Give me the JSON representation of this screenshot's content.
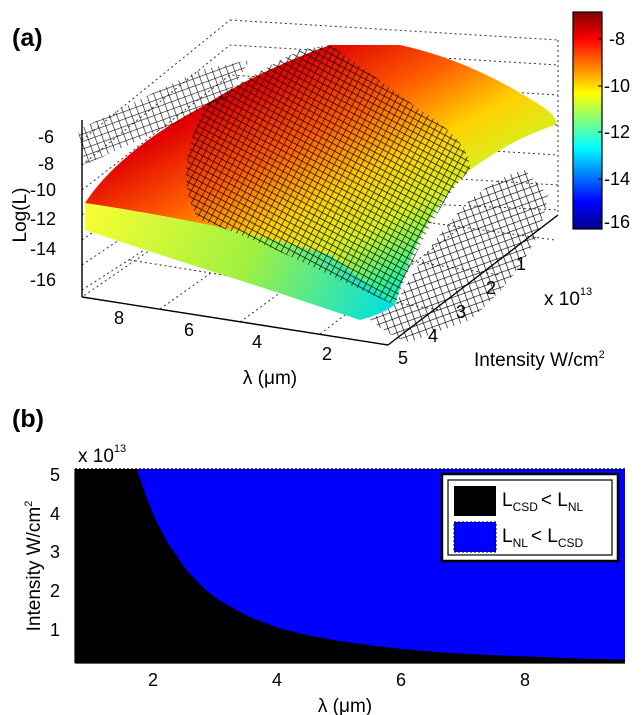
{
  "chart_data": [
    {
      "type": "surface",
      "panel_label": "(a)",
      "zlabel": "Log(L)",
      "xlabel": "λ (μm)",
      "ylabel": "Intensity W/cm",
      "ylabel_sup": "2",
      "y_exponent": "x 10",
      "y_exponent_power": "13",
      "x_ticks": [
        "8",
        "6",
        "4",
        "2"
      ],
      "y_ticks": [
        "1",
        "2",
        "3",
        "4",
        "5"
      ],
      "z_ticks": [
        "-6",
        "-8",
        "-10",
        "-12",
        "-14",
        "-16"
      ],
      "xlim": [
        0.7,
        9.5
      ],
      "ylim": [
        0,
        5
      ],
      "zlim": [
        -16.5,
        -6
      ],
      "colorbar": {
        "colormap": "jet",
        "range": [
          -16.5,
          -7.2
        ],
        "ticks": [
          "-8",
          "-10",
          "-12",
          "-14",
          "-16"
        ]
      },
      "surfaces": [
        {
          "style": "colored",
          "z_corners": {
            "x_max_y_min": -10.5,
            "x_max_y_max": -7.5,
            "x_min_y_min": -12.8,
            "x_min_y_max": -7.5
          }
        },
        {
          "style": "black-mesh",
          "z_corners": {
            "x_max_y_min": -7.5,
            "x_max_y_max": -9.5,
            "x_min_y_min": -16.5,
            "x_min_y_max": -16.5
          }
        }
      ],
      "grid": true
    },
    {
      "type": "area",
      "panel_label": "(b)",
      "xlabel": "λ (μm)",
      "ylabel": "Intensity W/cm",
      "ylabel_sup": "2",
      "y_exponent": "x 10",
      "y_exponent_power": "13",
      "xlim": [
        0.7,
        9.6
      ],
      "ylim": [
        0,
        5
      ],
      "x_ticks": [
        "2",
        "4",
        "6",
        "8"
      ],
      "y_ticks": [
        "1",
        "2",
        "3",
        "4",
        "5"
      ],
      "boundary": {
        "x": [
          1.7,
          1.85,
          2.0,
          2.2,
          2.5,
          2.8,
          3.0,
          3.5,
          4.0,
          4.5,
          5.0,
          5.5,
          6.0,
          6.5,
          7.0,
          7.5,
          8.0,
          8.5,
          9.0,
          9.6
        ],
        "y": [
          5.0,
          4.3,
          3.7,
          3.1,
          2.4,
          1.9,
          1.65,
          1.2,
          0.9,
          0.7,
          0.56,
          0.45,
          0.36,
          0.29,
          0.24,
          0.2,
          0.17,
          0.14,
          0.11,
          0.09
        ]
      },
      "regions": [
        {
          "name": "L_CSD < L_NL",
          "color": "#000000",
          "side": "below boundary"
        },
        {
          "name": "L_NL < L_CSD",
          "color": "#0000ff",
          "side": "above boundary"
        }
      ],
      "legend": {
        "placement": "top-right",
        "entries": [
          {
            "a": "L",
            "a_sub": "CSD",
            "op": "< L",
            "b_sub": "NL",
            "color": "#000000"
          },
          {
            "a": "L",
            "a_sub": "NL",
            "op": "< L",
            "b_sub": "CSD",
            "color": "#0000ff"
          }
        ]
      }
    }
  ]
}
